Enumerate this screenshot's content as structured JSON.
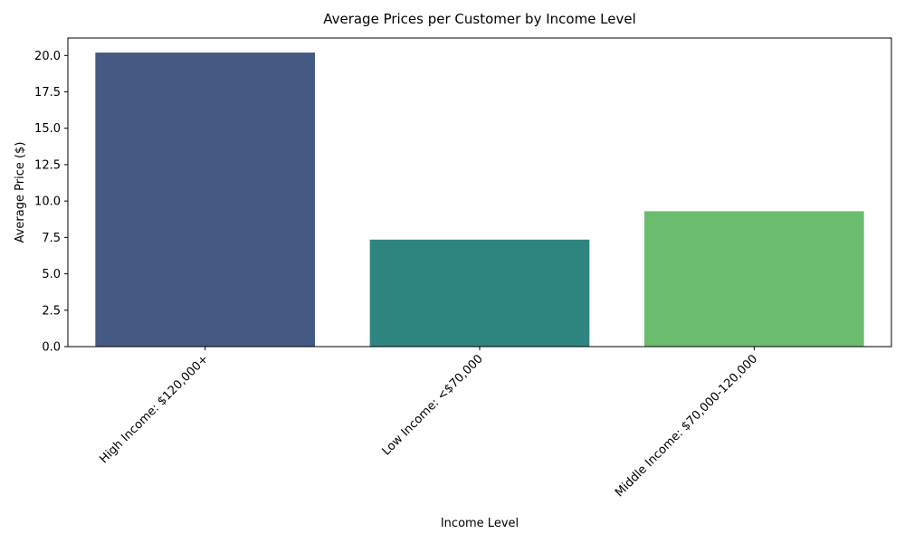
{
  "chart_data": {
    "type": "bar",
    "title": "Average Prices per Customer by Income Level",
    "xlabel": "Income Level",
    "ylabel": "Average Price ($)",
    "categories": [
      "High Income: $120,000+",
      "Low Income: <$70,000",
      "Middle Income: $70,000-120,000"
    ],
    "values": [
      20.2,
      7.35,
      9.3
    ],
    "colors": [
      "#455a82",
      "#2e857f",
      "#6bbd6e"
    ],
    "ylim": [
      0,
      21.2
    ],
    "yticks": [
      0.0,
      2.5,
      5.0,
      7.5,
      10.0,
      12.5,
      15.0,
      17.5,
      20.0
    ],
    "ytick_labels": [
      "0.0",
      "2.5",
      "5.0",
      "7.5",
      "10.0",
      "12.5",
      "15.0",
      "17.5",
      "20.0"
    ],
    "grid": false,
    "legend": "none",
    "xtick_rotation_deg": -45
  }
}
